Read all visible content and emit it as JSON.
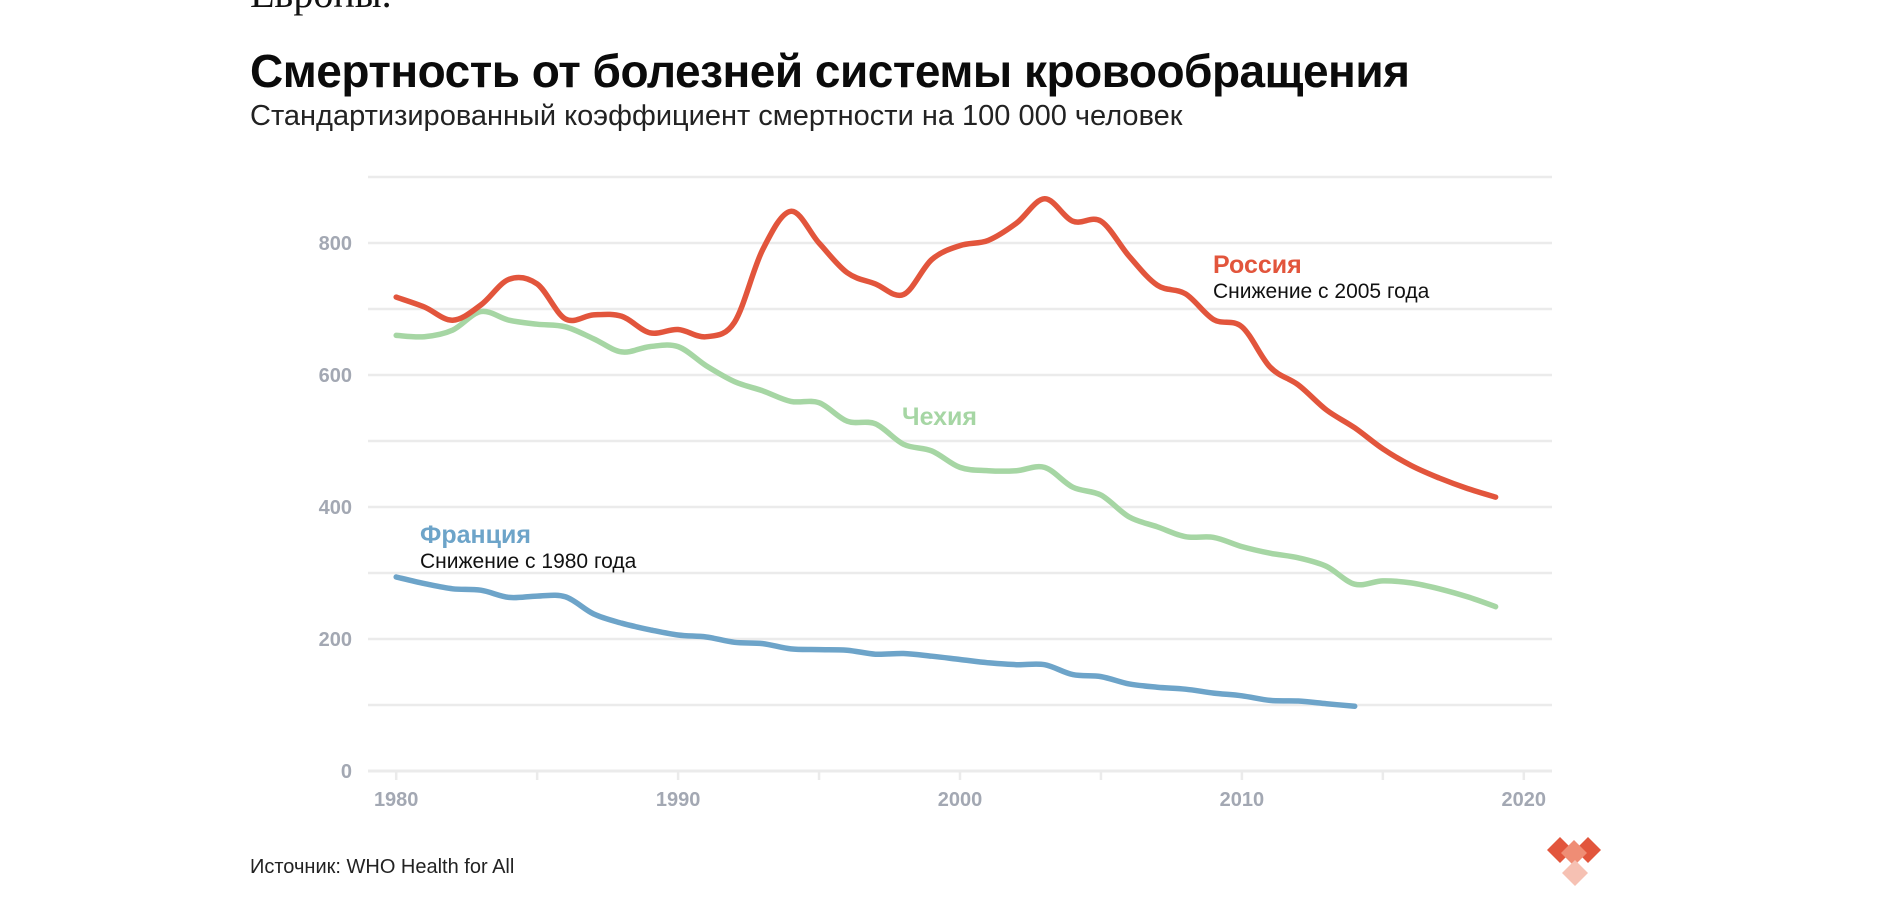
{
  "page": {
    "top_fragment": "Европы.",
    "source": "Источник: WHO Health for All"
  },
  "colors": {
    "russia": "#e2553c",
    "czech": "#a6d6a4",
    "france": "#6da4c9",
    "grid": "#ebebeb",
    "axis_text": "#a3a8b3",
    "logo": "#e2553c"
  },
  "logo": {
    "icon": "heart-diamonds-logo"
  },
  "chart_data": {
    "type": "line",
    "title": "Смертность от болезней системы кровообращения",
    "subtitle": "Стандартизированный коэффициент смертности на 100 000 человек",
    "xlabel": "",
    "ylabel": "",
    "xlim": [
      1979,
      2021
    ],
    "ylim": [
      0,
      900
    ],
    "x_ticks": [
      1980,
      1990,
      2000,
      2010,
      2020
    ],
    "y_ticks": [
      0,
      200,
      400,
      600,
      800
    ],
    "grid": true,
    "series": [
      {
        "name": "Россия",
        "annotation": "Снижение с 2005 года",
        "color": "#e2553c",
        "x": [
          1980,
          1981,
          1982,
          1983,
          1984,
          1985,
          1986,
          1987,
          1988,
          1989,
          1990,
          1991,
          1992,
          1993,
          1994,
          1995,
          1996,
          1997,
          1998,
          1999,
          2000,
          2001,
          2002,
          2003,
          2004,
          2005,
          2006,
          2007,
          2008,
          2009,
          2010,
          2011,
          2012,
          2013,
          2014,
          2015,
          2016,
          2017,
          2018,
          2019
        ],
        "values": [
          718,
          703,
          683,
          706,
          745,
          738,
          685,
          691,
          689,
          664,
          669,
          658,
          680,
          790,
          848,
          800,
          755,
          738,
          722,
          775,
          796,
          804,
          830,
          867,
          833,
          833,
          780,
          736,
          723,
          684,
          673,
          612,
          585,
          547,
          520,
          488,
          463,
          444,
          428,
          415
        ]
      },
      {
        "name": "Чехия",
        "color": "#a6d6a4",
        "x": [
          1980,
          1981,
          1982,
          1983,
          1984,
          1985,
          1986,
          1987,
          1988,
          1989,
          1990,
          1991,
          1992,
          1993,
          1994,
          1995,
          1996,
          1997,
          1998,
          1999,
          2000,
          2001,
          2002,
          2003,
          2004,
          2005,
          2006,
          2007,
          2008,
          2009,
          2010,
          2011,
          2012,
          2013,
          2014,
          2015,
          2016,
          2017,
          2018,
          2019
        ],
        "values": [
          660,
          658,
          668,
          696,
          683,
          677,
          673,
          655,
          635,
          643,
          643,
          614,
          590,
          576,
          560,
          558,
          530,
          526,
          495,
          485,
          460,
          455,
          455,
          460,
          430,
          418,
          385,
          370,
          355,
          354,
          340,
          330,
          323,
          310,
          283,
          288,
          285,
          276,
          264,
          249
        ]
      },
      {
        "name": "Франция",
        "annotation": "Снижение с 1980 года",
        "color": "#6da4c9",
        "x": [
          1980,
          1981,
          1982,
          1983,
          1984,
          1985,
          1986,
          1987,
          1988,
          1989,
          1990,
          1991,
          1992,
          1993,
          1994,
          1995,
          1996,
          1997,
          1998,
          1999,
          2000,
          2001,
          2002,
          2003,
          2004,
          2005,
          2006,
          2007,
          2008,
          2009,
          2010,
          2011,
          2012,
          2013,
          2014
        ],
        "values": [
          294,
          284,
          276,
          274,
          263,
          265,
          264,
          238,
          224,
          214,
          206,
          203,
          195,
          193,
          185,
          184,
          183,
          177,
          178,
          174,
          169,
          164,
          161,
          161,
          146,
          143,
          132,
          127,
          124,
          118,
          114,
          107,
          106,
          102,
          98
        ]
      }
    ]
  }
}
